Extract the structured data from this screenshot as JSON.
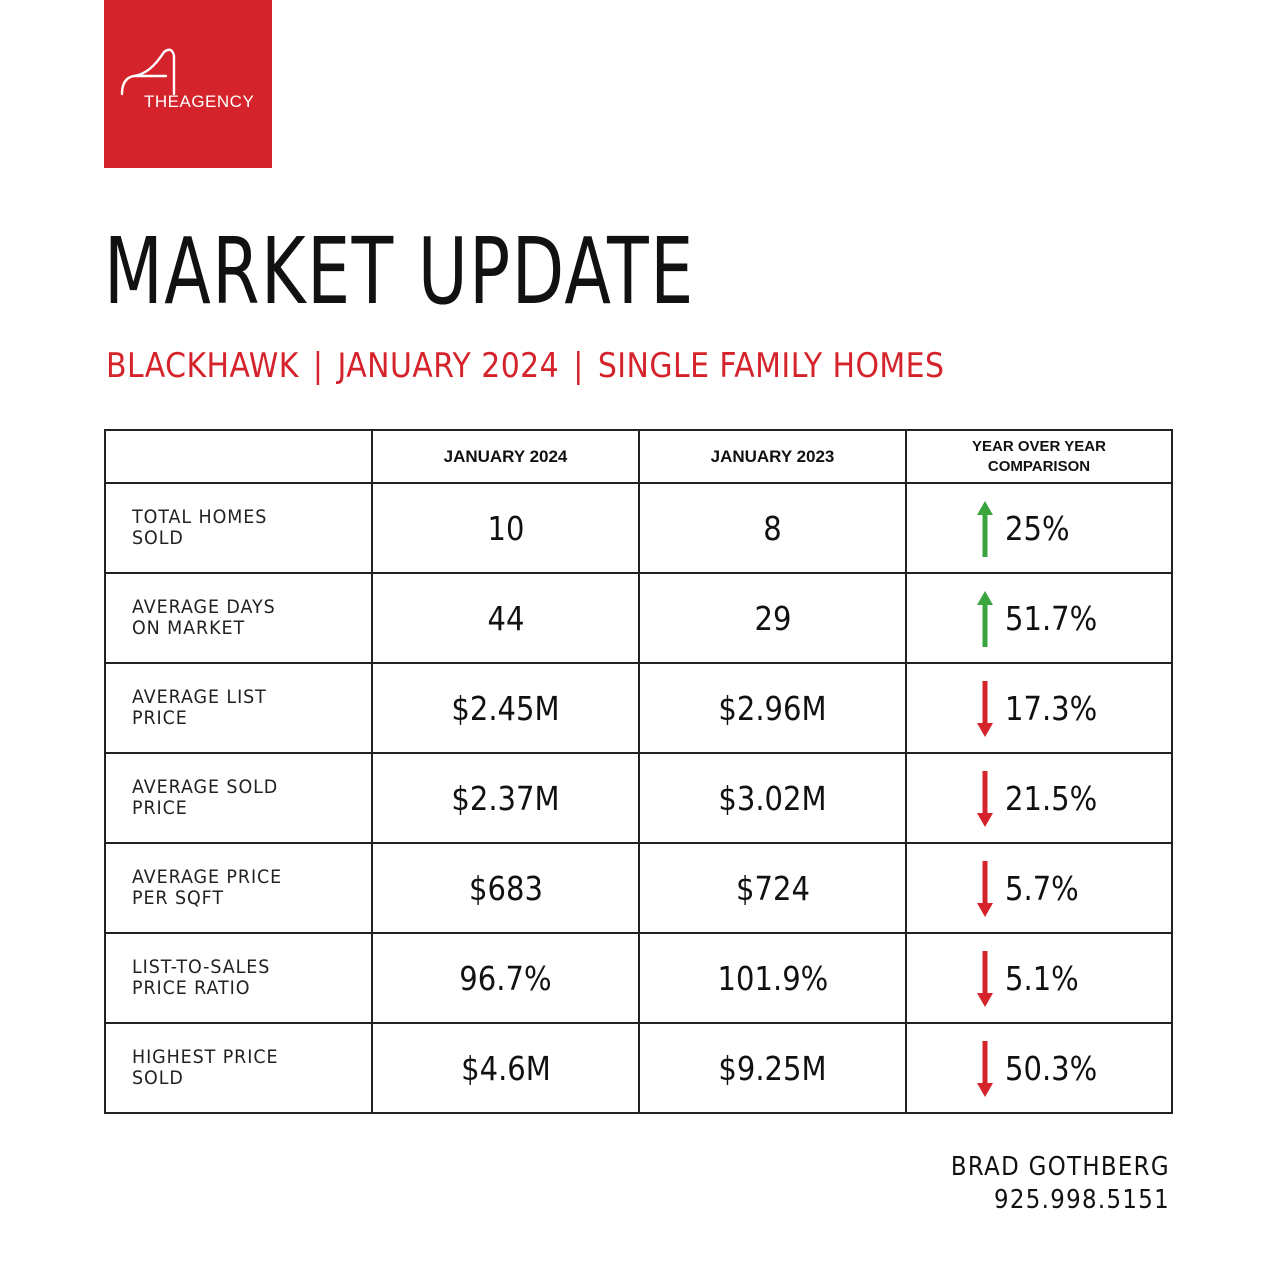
{
  "brand": {
    "logo_text": "THEAGENCY",
    "color": "#d5232b"
  },
  "title": "MARKET UPDATE",
  "subtitle": {
    "area": "BLACKHAWK",
    "period": "JANUARY 2024",
    "segment": "SINGLE FAMILY HOMES",
    "separator": "|"
  },
  "table": {
    "headers": [
      "",
      "JANUARY 2024",
      "JANUARY 2023",
      "YEAR OVER YEAR",
      "COMPARISON"
    ],
    "rows": [
      {
        "metric": [
          "TOTAL HOMES",
          "SOLD"
        ],
        "jan2024": "10",
        "jan2023": "8",
        "direction": "up",
        "change": "25%"
      },
      {
        "metric": [
          "AVERAGE DAYS",
          "ON MARKET"
        ],
        "jan2024": "44",
        "jan2023": "29",
        "direction": "up",
        "change": "51.7%"
      },
      {
        "metric": [
          "AVERAGE LIST",
          "PRICE"
        ],
        "jan2024": "$2.45M",
        "jan2023": "$2.96M",
        "direction": "down",
        "change": "17.3%"
      },
      {
        "metric": [
          "AVERAGE SOLD",
          "PRICE"
        ],
        "jan2024": "$2.37M",
        "jan2023": "$3.02M",
        "direction": "down",
        "change": "21.5%"
      },
      {
        "metric": [
          "AVERAGE PRICE",
          "PER SQFT"
        ],
        "jan2024": "$683",
        "jan2023": "$724",
        "direction": "down",
        "change": "5.7%"
      },
      {
        "metric": [
          "LIST-TO-SALES",
          "PRICE RATIO"
        ],
        "jan2024": "96.7%",
        "jan2023": "101.9%",
        "direction": "down",
        "change": "5.1%"
      },
      {
        "metric": [
          "HIGHEST PRICE",
          "SOLD"
        ],
        "jan2024": "$4.6M",
        "jan2023": "$9.25M",
        "direction": "down",
        "change": "50.3%"
      }
    ]
  },
  "arrow_colors": {
    "up": "#3aa53f",
    "down": "#d5232b"
  },
  "contact": {
    "name": "BRAD GOTHBERG",
    "phone": "925.998.5151"
  }
}
